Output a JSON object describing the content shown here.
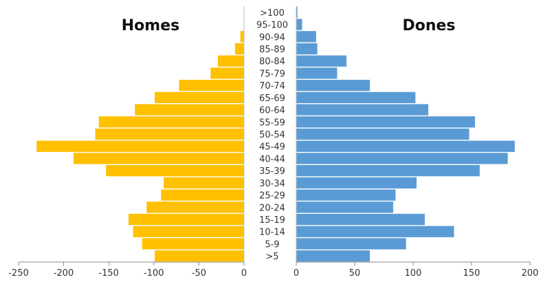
{
  "chart_data": {
    "type": "bar",
    "orientation": "horizontal",
    "layout": "population-pyramid",
    "categories": [
      ">5",
      "5-9",
      "10-14",
      "15-19",
      "20-24",
      "25-29",
      "30-34",
      "35-39",
      "40-44",
      "45-49",
      "50-54",
      "55-59",
      "60-64",
      "65-69",
      "70-74",
      "75-79",
      "80-84",
      "85-89",
      "90-94",
      "95-100",
      ">100"
    ],
    "series": [
      {
        "name": "Homes",
        "color": "#FFC000",
        "values": [
          -99,
          -113,
          -123,
          -128,
          -108,
          -92,
          -89,
          -153,
          -189,
          -230,
          -165,
          -161,
          -121,
          -99,
          -72,
          -37,
          -29,
          -10,
          -4,
          0,
          0
        ],
        "xlim": [
          -250,
          0
        ],
        "ticks": [
          "-250",
          "-200",
          "-150",
          "-100",
          "-50",
          "0"
        ],
        "tick_values": [
          -250,
          -200,
          -150,
          -100,
          -50,
          0
        ]
      },
      {
        "name": "Dones",
        "color": "#5B9BD5",
        "values": [
          63,
          94,
          135,
          110,
          83,
          85,
          103,
          157,
          181,
          187,
          148,
          153,
          113,
          102,
          63,
          35,
          43,
          18,
          17,
          5,
          1
        ],
        "xlim": [
          0,
          200
        ],
        "ticks": [
          "0",
          "50",
          "100",
          "150",
          "200"
        ],
        "tick_values": [
          0,
          50,
          100,
          150,
          200
        ]
      }
    ],
    "titles": {
      "left": "Homes",
      "right": "Dones"
    },
    "grid": false,
    "legend": "none"
  }
}
